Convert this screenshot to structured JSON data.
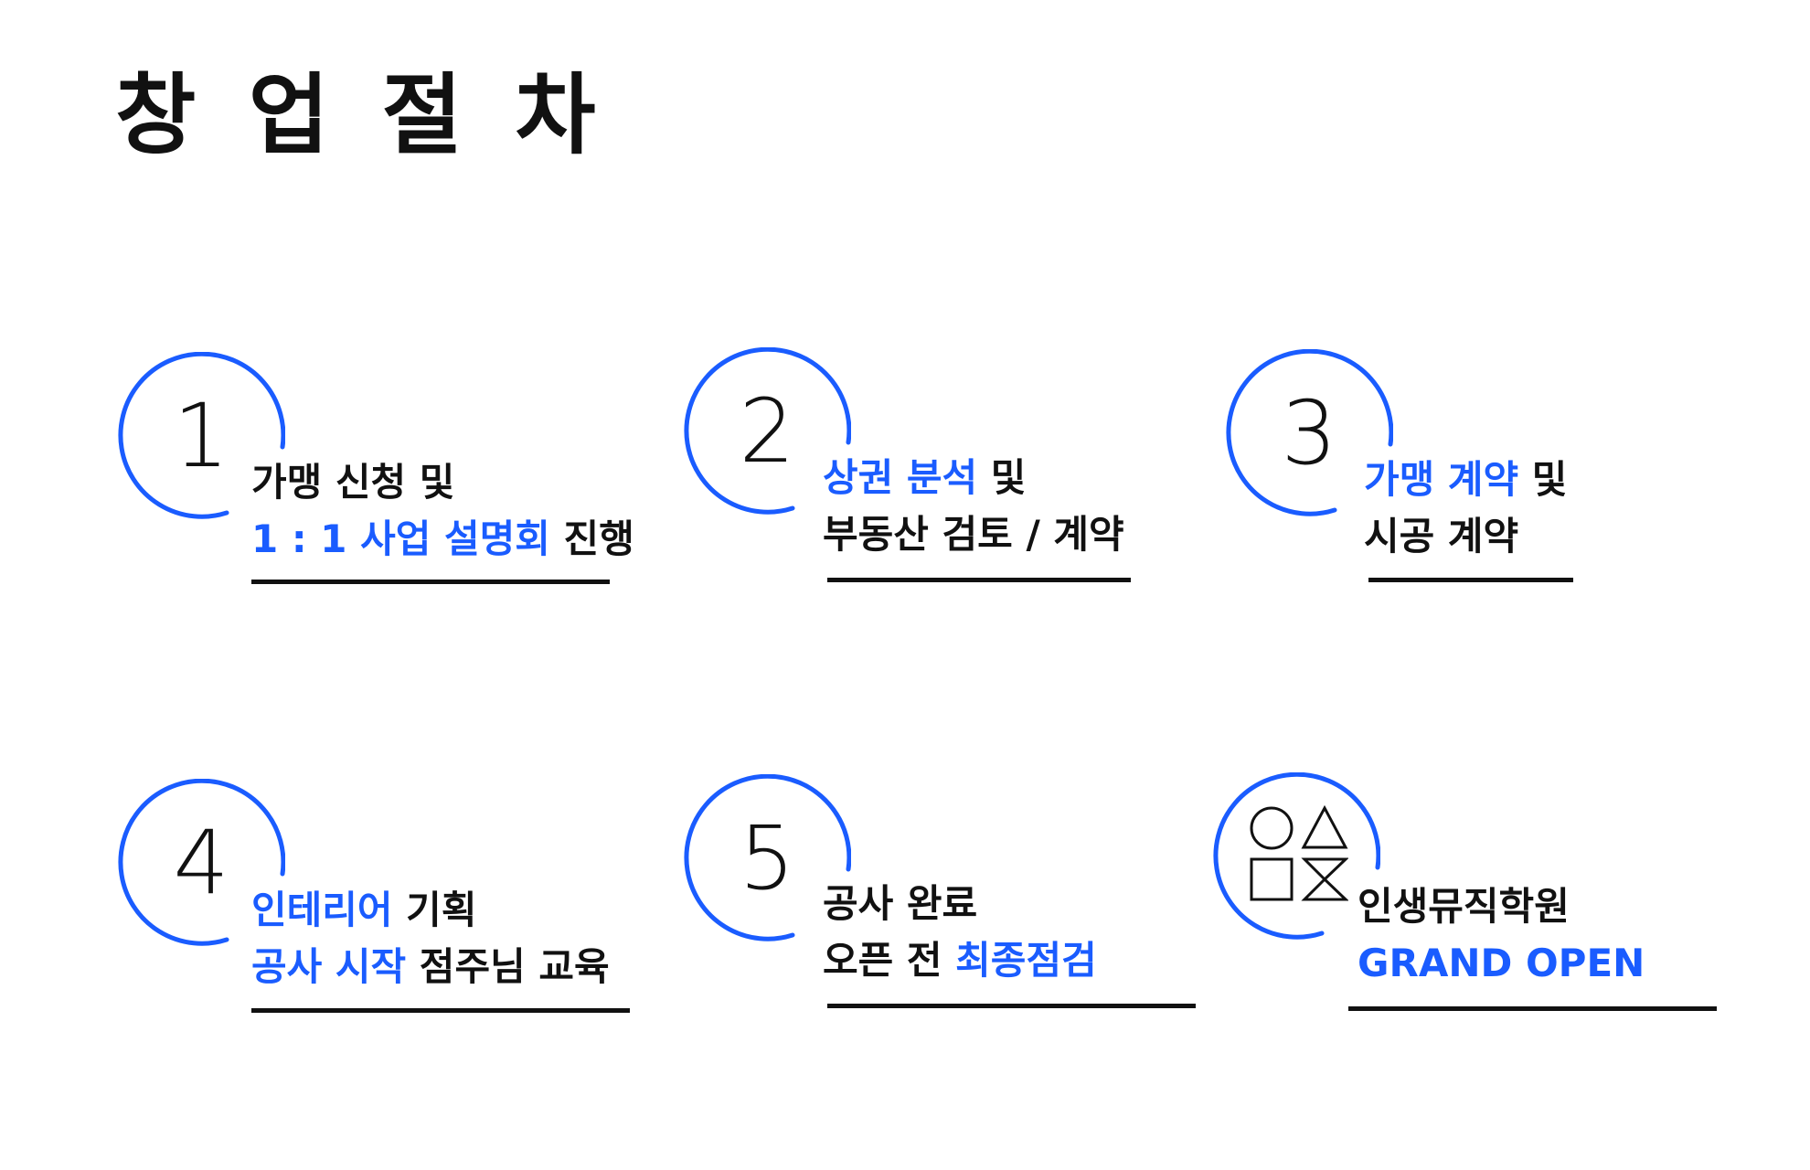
{
  "title": "창 업 절 차",
  "colors": {
    "accent": "#1a5cff",
    "text": "#111111",
    "background": "#ffffff"
  },
  "steps": [
    {
      "number": "1",
      "lines": [
        [
          {
            "t": "가맹 신청 및",
            "hl": false
          }
        ],
        [
          {
            "t": "1 : 1 사업 설명회",
            "hl": true
          },
          {
            "t": " 진행",
            "hl": false
          }
        ]
      ]
    },
    {
      "number": "2",
      "lines": [
        [
          {
            "t": "상권 분석",
            "hl": true
          },
          {
            "t": " 및",
            "hl": false
          }
        ],
        [
          {
            "t": "부동산 검토 / 계약",
            "hl": false
          }
        ]
      ]
    },
    {
      "number": "3",
      "lines": [
        [
          {
            "t": "가맹 계약",
            "hl": true
          },
          {
            "t": " 및",
            "hl": false
          }
        ],
        [
          {
            "t": "시공 계약",
            "hl": false
          }
        ]
      ]
    },
    {
      "number": "4",
      "lines": [
        [
          {
            "t": "인테리어",
            "hl": true
          },
          {
            "t": " 기획",
            "hl": false
          }
        ],
        [
          {
            "t": "공사 시작",
            "hl": true
          },
          {
            "t": " 점주님 교육",
            "hl": false
          }
        ]
      ]
    },
    {
      "number": "5",
      "lines": [
        [
          {
            "t": "공사 완료",
            "hl": false
          }
        ],
        [
          {
            "t": "오픈 전 ",
            "hl": false
          },
          {
            "t": "최종점검",
            "hl": true
          }
        ]
      ]
    },
    {
      "number": "",
      "icon": "shapes-logo-icon",
      "lines": [
        [
          {
            "t": "인생뮤직학원",
            "hl": false
          }
        ],
        [
          {
            "t": "GRAND OPEN",
            "hl": true
          }
        ]
      ]
    }
  ]
}
